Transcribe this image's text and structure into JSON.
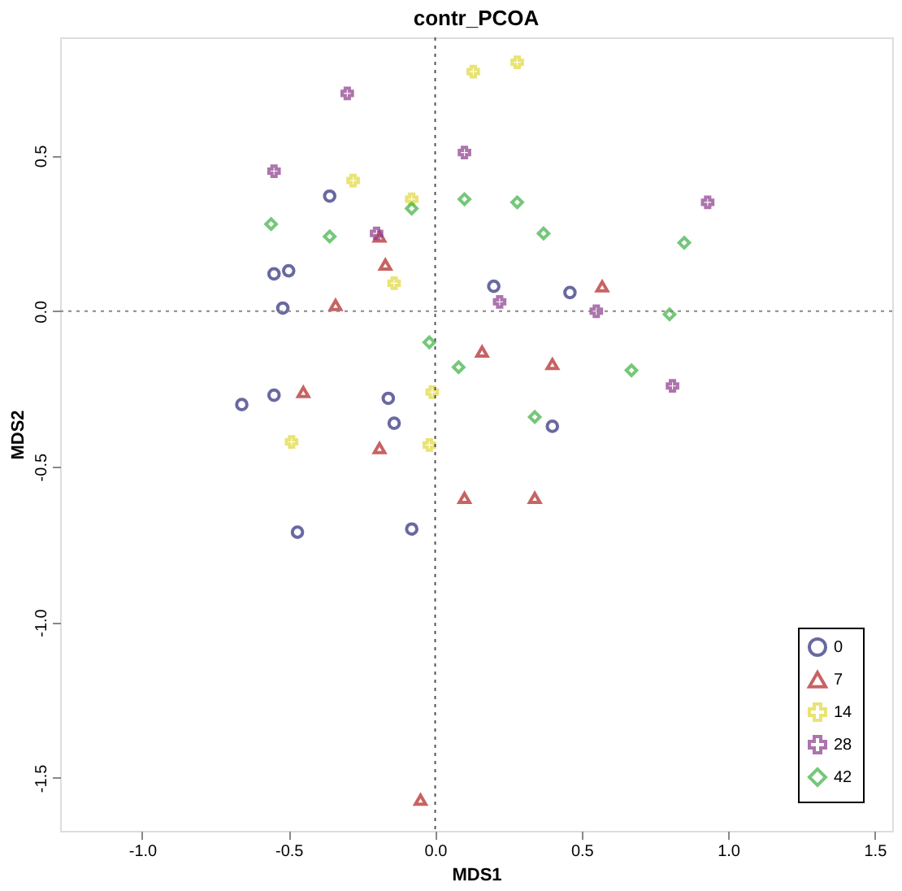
{
  "chart_data": {
    "type": "scatter",
    "title": "contr_PCOA",
    "xlabel": "MDS1",
    "ylabel": "MDS2",
    "xlim": [
      -1.28,
      1.56
    ],
    "ylim": [
      -1.67,
      0.88
    ],
    "xticks": [
      {
        "value": -1,
        "label": "-1.0"
      },
      {
        "value": -0.5,
        "label": "-0.5"
      },
      {
        "value": 0,
        "label": "0.0"
      },
      {
        "value": 0.5,
        "label": "0.5"
      },
      {
        "value": 1,
        "label": "1.0"
      },
      {
        "value": 1.5,
        "label": "1.5"
      }
    ],
    "yticks": [
      {
        "value": -1.5,
        "label": "-1.5"
      },
      {
        "value": -1,
        "label": "-1.0"
      },
      {
        "value": -0.5,
        "label": "-0.5"
      },
      {
        "value": 0,
        "label": "0.0"
      },
      {
        "value": 0.5,
        "label": "0.5"
      }
    ],
    "grid": false,
    "legend": "bottom right",
    "ref_lines": [
      {
        "axis": "x",
        "value": 0,
        "line_style": "dotted",
        "color": "#555555"
      },
      {
        "axis": "y",
        "value": 0,
        "line_style": "dotted",
        "color": "#888888"
      }
    ],
    "series": [
      {
        "name": "0",
        "color": "#2b2b7a",
        "marker": "circle",
        "x": [
          -0.36,
          -0.5,
          -0.55,
          -0.52,
          -0.66,
          -0.55,
          -0.47,
          -0.08,
          -0.14,
          -0.16,
          0.2,
          0.46,
          0.4
        ],
        "values": [
          0.37,
          0.13,
          0.12,
          0.01,
          -0.3,
          -0.27,
          -0.71,
          -0.7,
          -0.36,
          -0.28,
          0.08,
          0.06,
          -0.37
        ]
      },
      {
        "name": "7",
        "color": "#b22222",
        "marker": "triangle",
        "x": [
          -0.45,
          -0.19,
          -0.05,
          -0.17,
          -0.19,
          -0.34,
          0.57,
          0.4,
          0.16,
          0.1,
          0.34
        ],
        "values": [
          -0.26,
          -0.44,
          -1.57,
          0.15,
          0.24,
          0.02,
          0.08,
          -0.17,
          -0.13,
          -0.6,
          -0.6
        ]
      },
      {
        "name": "14",
        "color": "#e0d83a",
        "marker": "cross",
        "x": [
          0.13,
          0.28,
          -0.28,
          -0.08,
          -0.14,
          -0.49,
          -0.02,
          -0.01
        ],
        "values": [
          0.77,
          0.8,
          0.42,
          0.36,
          0.09,
          -0.42,
          -0.43,
          -0.26
        ]
      },
      {
        "name": "28",
        "color": "#8b3a8b",
        "marker": "cross",
        "x": [
          -0.3,
          -0.55,
          -0.2,
          0.1,
          0.93,
          0.55,
          0.81,
          0.22
        ],
        "values": [
          0.7,
          0.45,
          0.25,
          0.51,
          0.35,
          0.0,
          -0.24,
          0.03
        ]
      },
      {
        "name": "42",
        "color": "#3cb043",
        "marker": "diamond",
        "x": [
          -0.56,
          -0.36,
          -0.08,
          0.1,
          0.28,
          0.37,
          0.85,
          0.8,
          0.67,
          0.08,
          0.34,
          -0.02
        ],
        "values": [
          0.28,
          0.24,
          0.33,
          0.36,
          0.35,
          0.25,
          0.22,
          -0.01,
          -0.19,
          -0.18,
          -0.34,
          -0.1
        ]
      }
    ]
  }
}
